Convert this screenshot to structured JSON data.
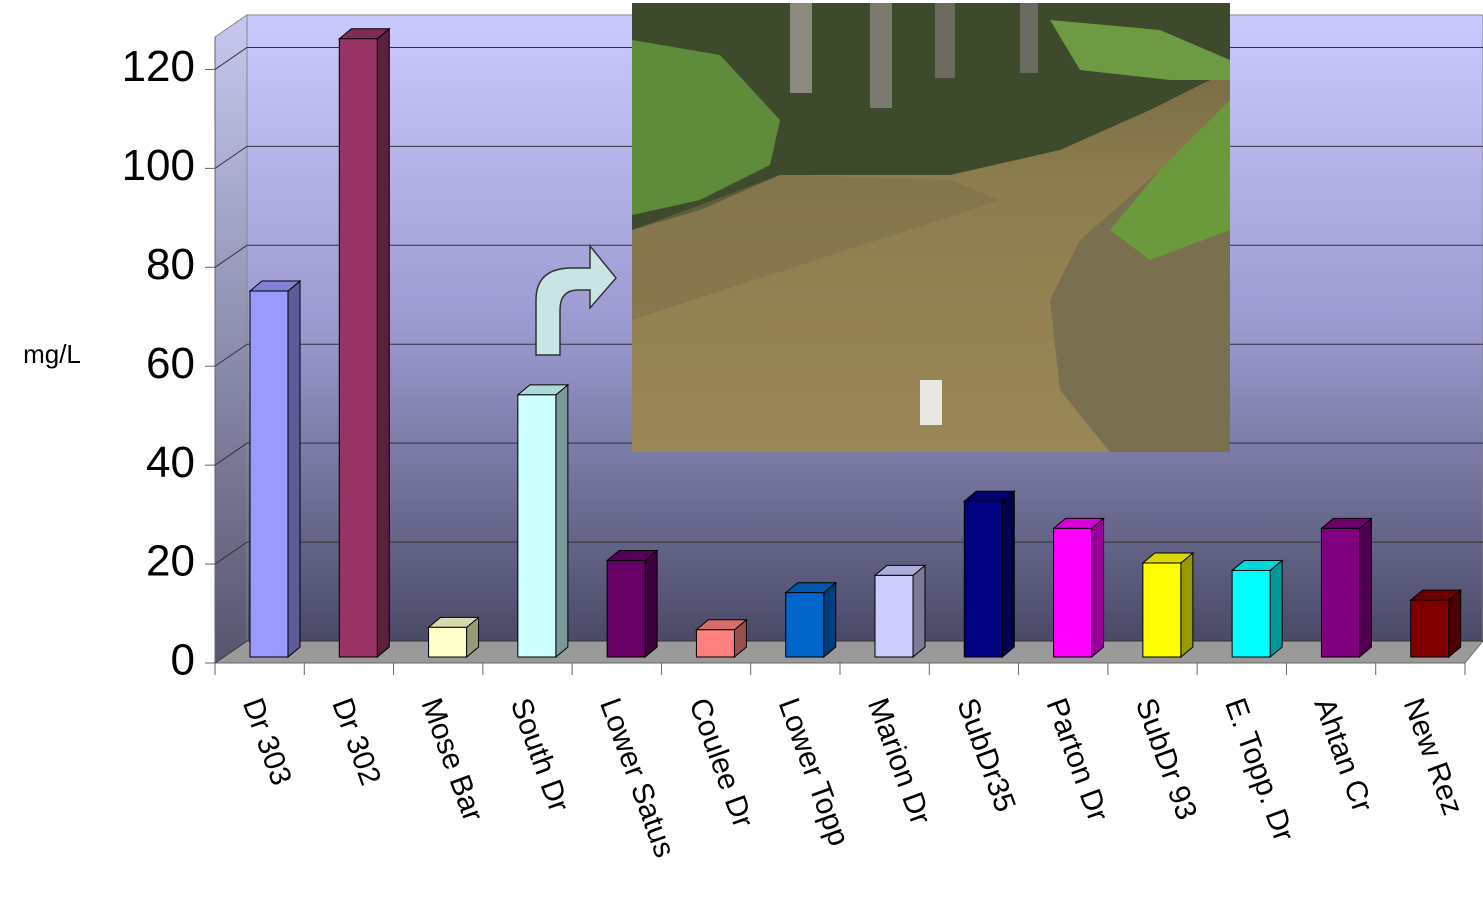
{
  "chart_data": {
    "type": "bar",
    "ylabel": "mg/L",
    "categories": [
      "Dr 303",
      "Dr 302",
      "Mose Bar",
      "South Dr",
      "Lower Satus",
      "Coulee Dr",
      "Lower Topp",
      "Marion Dr",
      "SubDr35",
      "Parton Dr",
      "SubDr 93",
      "E. Topp. Dr",
      "Ahtan Cr",
      "New Rez"
    ],
    "values": [
      74,
      125,
      6,
      53,
      19.5,
      5.5,
      13,
      16.5,
      31.5,
      26,
      19,
      17.5,
      26,
      11.5
    ],
    "colors": [
      "#9999ff",
      "#993366",
      "#ffffcc",
      "#ccffff",
      "#660066",
      "#ff8080",
      "#0066cc",
      "#ccccff",
      "#000080",
      "#ff00ff",
      "#ffff00",
      "#00ffff",
      "#800080",
      "#800000"
    ],
    "ylim": [
      0,
      130
    ],
    "yticks": [
      0,
      20,
      40,
      60,
      80,
      100,
      120
    ],
    "grid": true
  }
}
